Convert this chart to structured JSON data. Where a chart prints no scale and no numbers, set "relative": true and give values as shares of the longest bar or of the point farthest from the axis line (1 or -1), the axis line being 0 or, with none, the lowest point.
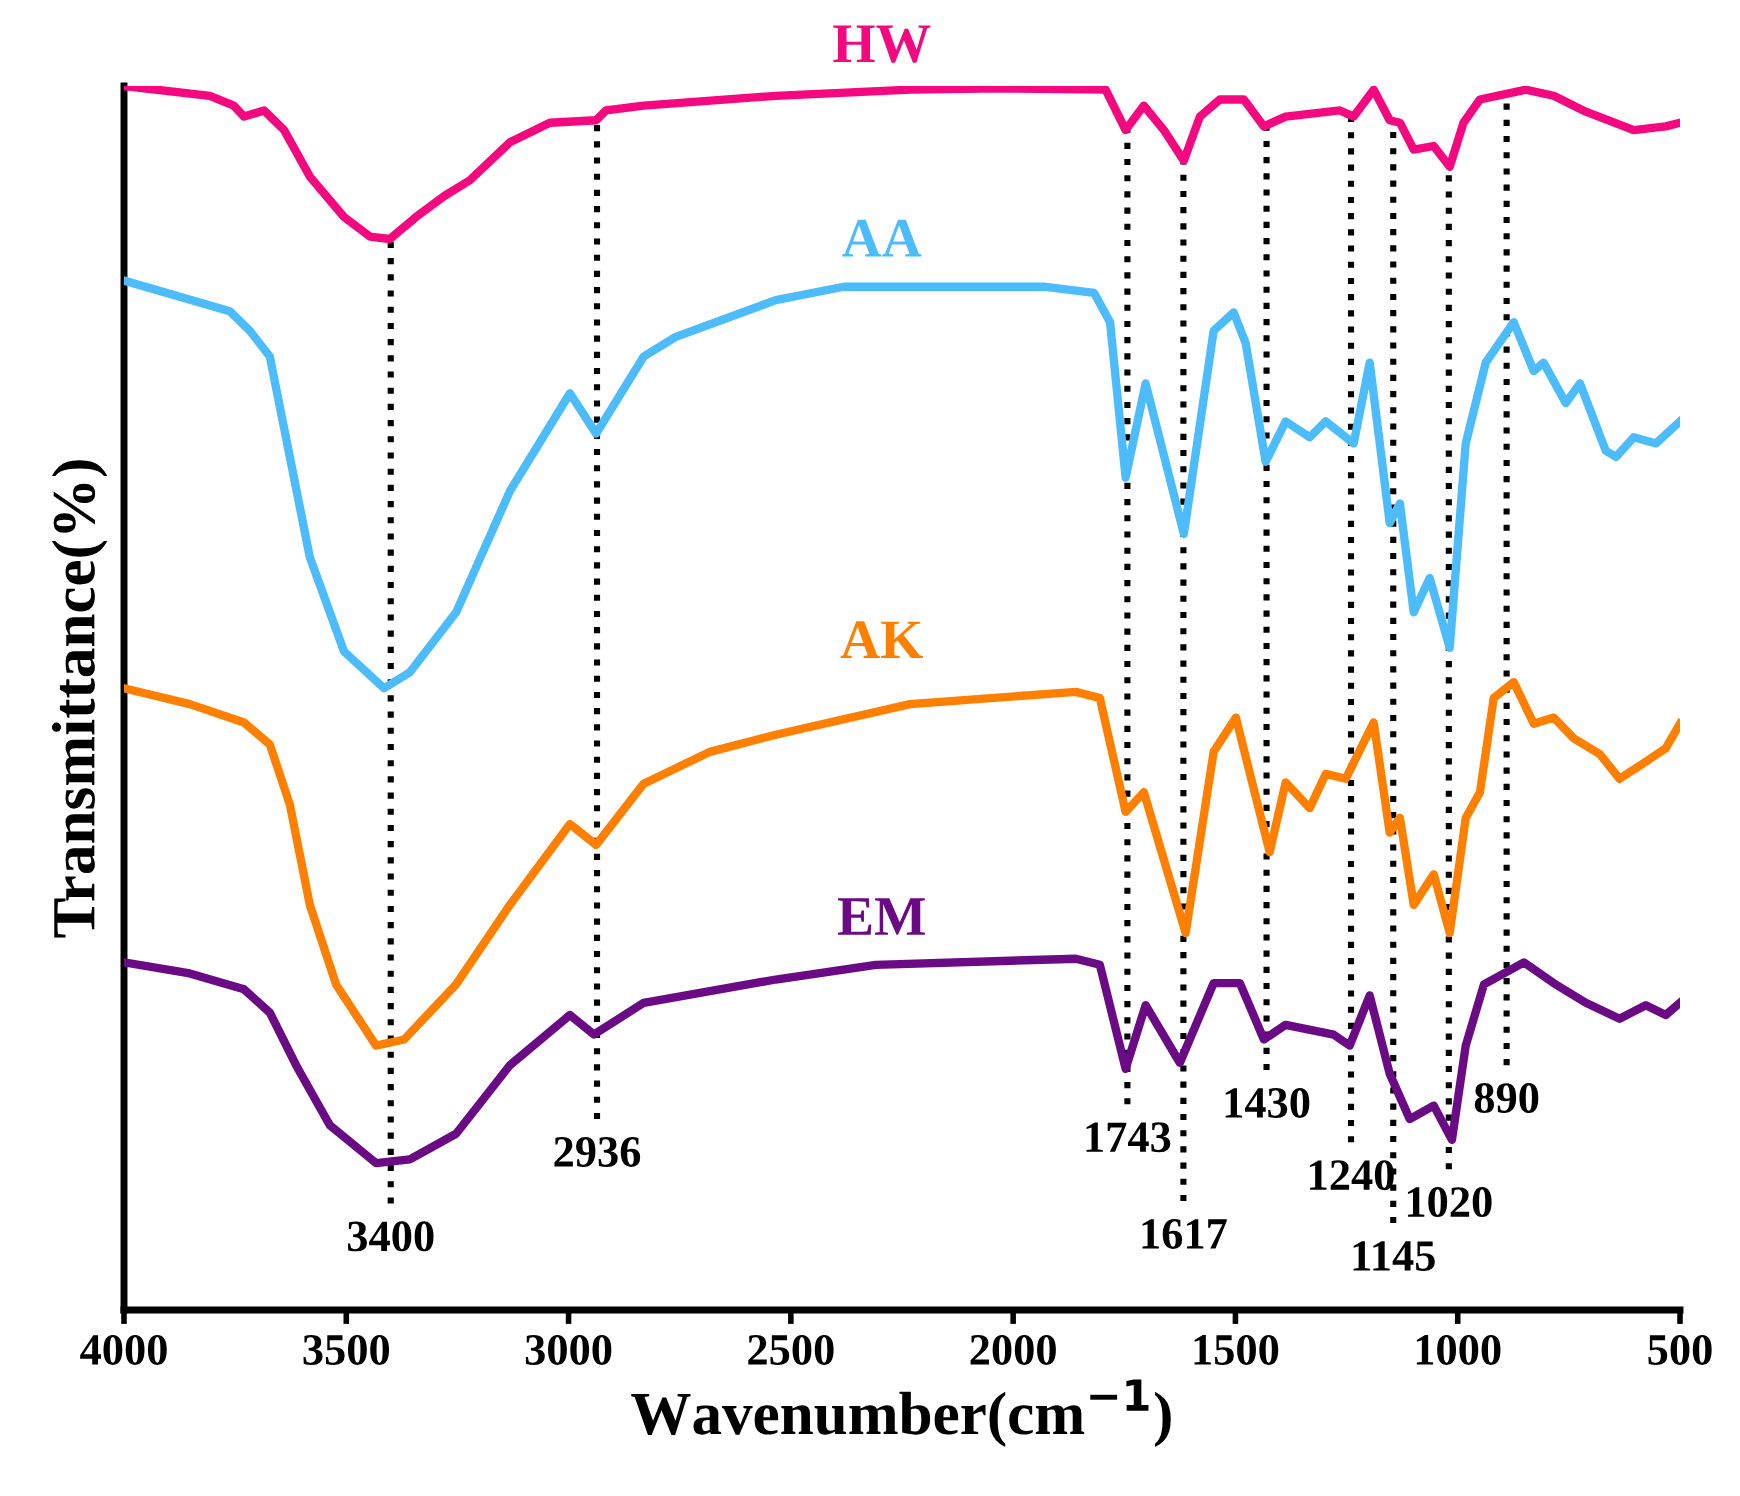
{
  "chart_data": {
    "type": "line",
    "relative": true,
    "xlabel": "Wavenumber(cm$^{−1}$)",
    "ylabel": "Transmittance(%)",
    "xlim": [
      4000,
      500
    ],
    "xticks": [
      4000,
      3500,
      3000,
      2500,
      2000,
      1500,
      1000,
      500
    ],
    "grid": false,
    "legend": false,
    "tick_labels": "x",
    "marker": "none",
    "line_style": "solid",
    "series": [
      {
        "name": "HW",
        "color": "#f5087f",
        "x": [
          4000,
          3807,
          3753,
          3730,
          3685,
          3640,
          3582,
          3505,
          3447,
          3402,
          3343,
          3280,
          3222,
          3132,
          3042,
          2938,
          2916,
          2831,
          2534,
          2232,
          2030,
          1792,
          1747,
          1706,
          1661,
          1616,
          1580,
          1535,
          1481,
          1436,
          1387,
          1265,
          1234,
          1189,
          1153,
          1130,
          1099,
          1054,
          1018,
          987,
          950,
          847,
          784,
          712,
          604,
          532,
          500
        ],
        "values": [
          1.0,
          0.992,
          0.984,
          0.975,
          0.98,
          0.964,
          0.926,
          0.893,
          0.877,
          0.875,
          0.893,
          0.91,
          0.923,
          0.954,
          0.97,
          0.972,
          0.98,
          0.984,
          0.992,
          0.997,
          0.998,
          0.997,
          0.964,
          0.984,
          0.964,
          0.939,
          0.975,
          0.989,
          0.989,
          0.967,
          0.975,
          0.98,
          0.975,
          0.997,
          0.972,
          0.97,
          0.948,
          0.951,
          0.934,
          0.97,
          0.989,
          0.997,
          0.992,
          0.979,
          0.964,
          0.967,
          0.97
        ]
      },
      {
        "name": "AA",
        "color": "#4dbcfc",
        "x": [
          4000,
          3762,
          3717,
          3672,
          3627,
          3582,
          3505,
          3415,
          3357,
          3253,
          3132,
          2997,
          2938,
          2831,
          2759,
          2534,
          2381,
          1931,
          1818,
          1782,
          1747,
          1702,
          1616,
          1549,
          1504,
          1477,
          1432,
          1387,
          1333,
          1297,
          1234,
          1198,
          1153,
          1130,
          1099,
          1063,
          1018,
          982,
          937,
          874,
          829,
          807,
          757,
          725,
          667,
          644,
          604,
          554,
          500
        ],
        "values": [
          0.841,
          0.816,
          0.8,
          0.779,
          0.697,
          0.615,
          0.538,
          0.508,
          0.521,
          0.57,
          0.669,
          0.749,
          0.716,
          0.779,
          0.795,
          0.825,
          0.836,
          0.836,
          0.831,
          0.807,
          0.68,
          0.757,
          0.634,
          0.8,
          0.815,
          0.79,
          0.693,
          0.726,
          0.713,
          0.726,
          0.708,
          0.774,
          0.643,
          0.659,
          0.57,
          0.598,
          0.541,
          0.708,
          0.774,
          0.807,
          0.767,
          0.774,
          0.741,
          0.757,
          0.702,
          0.697,
          0.713,
          0.708,
          0.726
        ]
      },
      {
        "name": "AK",
        "color": "#ff8000",
        "x": [
          4000,
          3852,
          3730,
          3672,
          3627,
          3582,
          3523,
          3433,
          3370,
          3253,
          3132,
          2997,
          2938,
          2831,
          2682,
          2534,
          2232,
          1859,
          1805,
          1747,
          1706,
          1612,
          1549,
          1499,
          1423,
          1387,
          1333,
          1297,
          1252,
          1189,
          1153,
          1130,
          1099,
          1054,
          1018,
          982,
          950,
          919,
          874,
          829,
          784,
          739,
          680,
          636,
          577,
          532,
          500
        ],
        "values": [
          0.508,
          0.495,
          0.48,
          0.462,
          0.413,
          0.331,
          0.266,
          0.216,
          0.221,
          0.266,
          0.331,
          0.397,
          0.38,
          0.43,
          0.456,
          0.47,
          0.495,
          0.505,
          0.5,
          0.407,
          0.423,
          0.308,
          0.456,
          0.484,
          0.374,
          0.431,
          0.41,
          0.438,
          0.434,
          0.48,
          0.39,
          0.402,
          0.331,
          0.356,
          0.308,
          0.402,
          0.423,
          0.5,
          0.513,
          0.479,
          0.484,
          0.467,
          0.454,
          0.434,
          0.448,
          0.459,
          0.479
        ]
      },
      {
        "name": "EM",
        "color": "#6a0a84",
        "x": [
          4000,
          3852,
          3730,
          3672,
          3613,
          3537,
          3433,
          3357,
          3253,
          3132,
          2997,
          2943,
          2831,
          2534,
          2309,
          1859,
          1805,
          1747,
          1702,
          1625,
          1549,
          1490,
          1436,
          1387,
          1279,
          1243,
          1198,
          1153,
          1108,
          1054,
          1013,
          982,
          941,
          851,
          784,
          712,
          636,
          577,
          532,
          500
        ],
        "values": [
          0.284,
          0.275,
          0.262,
          0.243,
          0.2,
          0.151,
          0.12,
          0.123,
          0.144,
          0.2,
          0.241,
          0.225,
          0.251,
          0.27,
          0.282,
          0.287,
          0.282,
          0.197,
          0.249,
          0.202,
          0.267,
          0.267,
          0.221,
          0.233,
          0.225,
          0.216,
          0.257,
          0.193,
          0.156,
          0.167,
          0.139,
          0.216,
          0.266,
          0.284,
          0.267,
          0.251,
          0.238,
          0.249,
          0.241,
          0.251
        ]
      }
    ],
    "ref_lines": [
      {
        "axis": "x",
        "value": 3400,
        "label": "3400",
        "line_style": "dotted",
        "color": "#000000"
      },
      {
        "axis": "x",
        "value": 2936,
        "label": "2936",
        "line_style": "dotted",
        "color": "#000000"
      },
      {
        "axis": "x",
        "value": 1743,
        "label": "1743",
        "line_style": "dotted",
        "color": "#000000"
      },
      {
        "axis": "x",
        "value": 1617,
        "label": "1617",
        "line_style": "dotted",
        "color": "#000000"
      },
      {
        "axis": "x",
        "value": 1430,
        "label": "1430",
        "line_style": "dotted",
        "color": "#000000"
      },
      {
        "axis": "x",
        "value": 1240,
        "label": "1240",
        "line_style": "dotted",
        "color": "#000000"
      },
      {
        "axis": "x",
        "value": 1145,
        "label": "1145",
        "line_style": "dotted",
        "color": "#000000"
      },
      {
        "axis": "x",
        "value": 1020,
        "label": "1020",
        "line_style": "dotted",
        "color": "#000000"
      },
      {
        "axis": "x",
        "value": 890,
        "label": "890",
        "line_style": "dotted",
        "color": "#000000"
      }
    ]
  }
}
